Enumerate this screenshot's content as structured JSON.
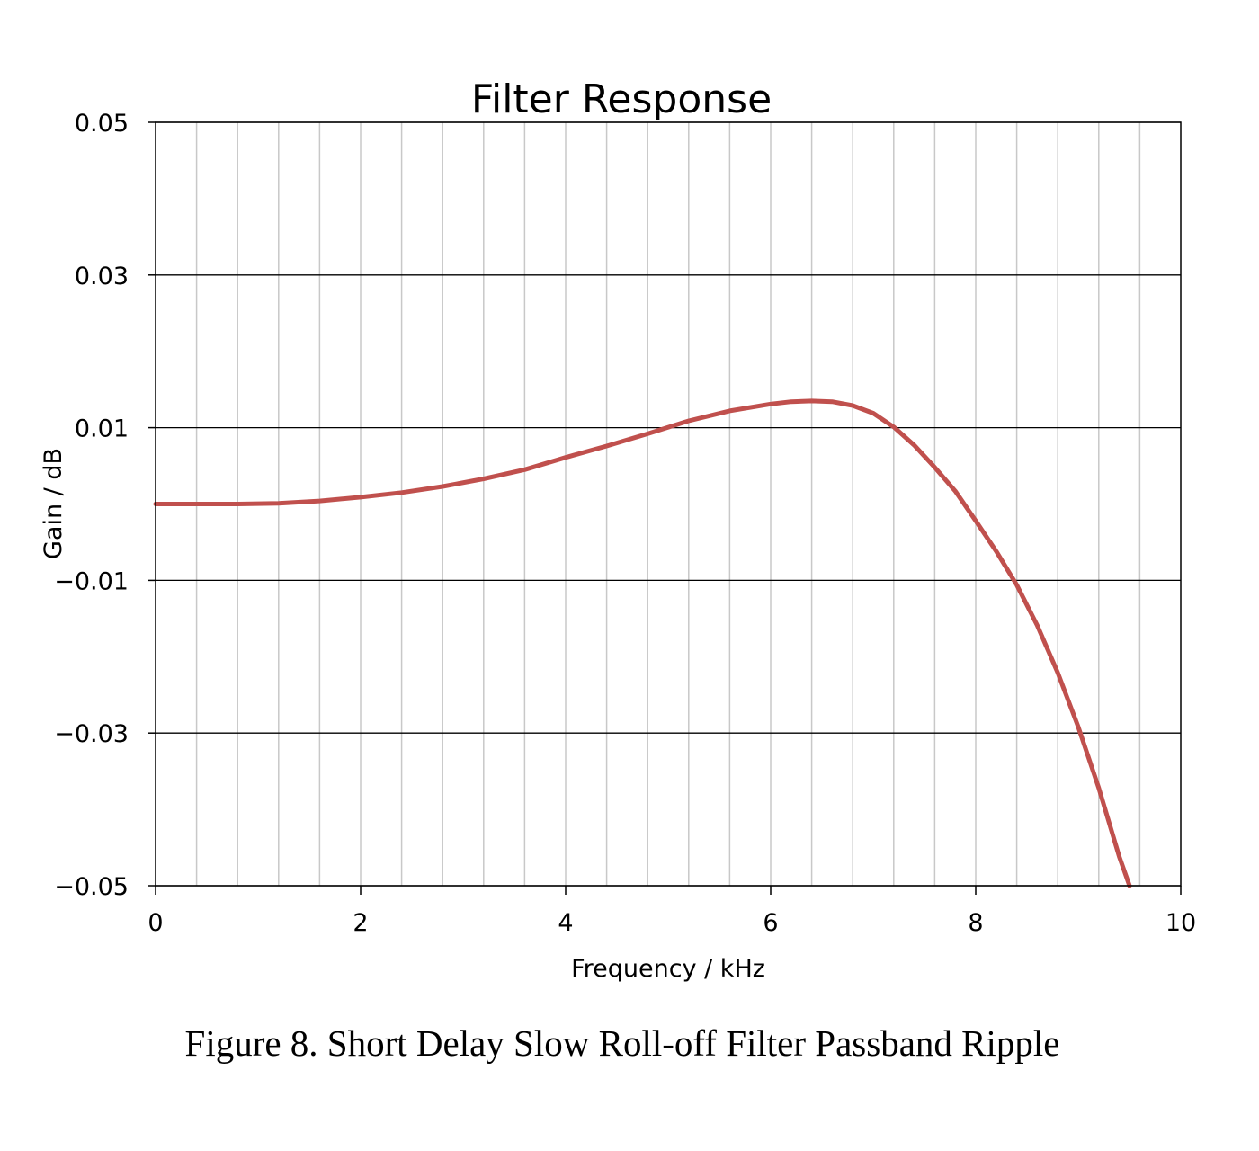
{
  "figure": {
    "caption": "Figure 8. Short Delay Slow Roll-off Filter Passband Ripple"
  },
  "chart_data": {
    "type": "line",
    "title": "Filter Response",
    "xlabel": "Frequency / kHz",
    "ylabel": "Gain / dB",
    "xlim": [
      0,
      10
    ],
    "ylim": [
      -0.05,
      0.05
    ],
    "x_ticks": [
      0,
      2,
      4,
      6,
      8,
      10
    ],
    "x_tick_labels": [
      "0",
      "2",
      "4",
      "6",
      "8",
      "10"
    ],
    "y_ticks": [
      0.05,
      0.03,
      0.01,
      -0.01,
      -0.03,
      -0.05
    ],
    "y_tick_labels": [
      "0.05",
      "0.03",
      "0.01",
      "−0.01",
      "−0.03",
      "−0.05"
    ],
    "x_minor_gridlines": 0.4,
    "grid": true,
    "line_color": "#c0504d",
    "series": [
      {
        "x": [
          0,
          0.4,
          0.8,
          1.2,
          1.6,
          2.0,
          2.4,
          2.8,
          3.2,
          3.6,
          4.0,
          4.4,
          4.8,
          5.2,
          5.6,
          6.0,
          6.2,
          6.4,
          6.6,
          6.8,
          7.0,
          7.2,
          7.4,
          7.6,
          7.8,
          8.0,
          8.2,
          8.4,
          8.6,
          8.8,
          9.0,
          9.2,
          9.4,
          9.5
        ],
        "y": [
          0.0,
          0.0,
          0.0,
          0.0001,
          0.0004,
          0.0009,
          0.0015,
          0.0023,
          0.0033,
          0.0045,
          0.0061,
          0.0076,
          0.0092,
          0.0109,
          0.0122,
          0.0131,
          0.0134,
          0.0135,
          0.0134,
          0.0129,
          0.0119,
          0.0101,
          0.0077,
          0.0048,
          0.0017,
          -0.0022,
          -0.0062,
          -0.0106,
          -0.0159,
          -0.0221,
          -0.0292,
          -0.0372,
          -0.0462,
          -0.05
        ]
      }
    ]
  }
}
